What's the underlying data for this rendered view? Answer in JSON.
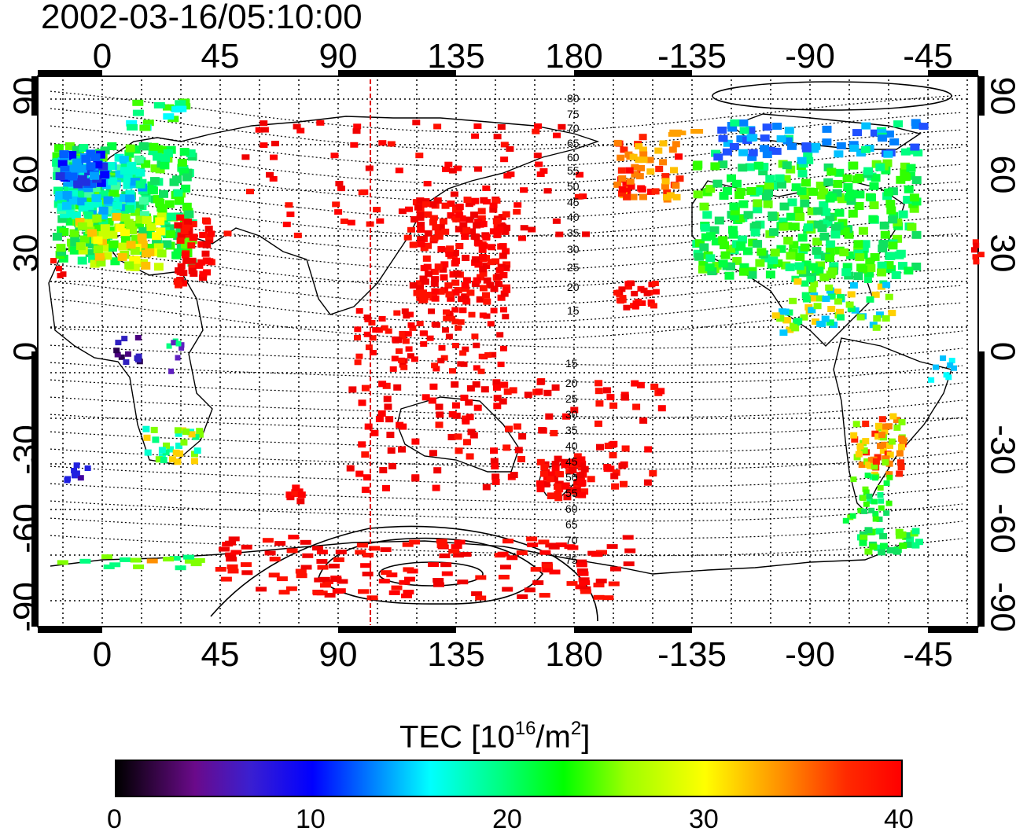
{
  "title": "2002-03-16/05:10:00",
  "map": {
    "lon_ticks": [
      "0",
      "45",
      "90",
      "135",
      "180",
      "-135",
      "-90",
      "-45"
    ],
    "lat_ticks": [
      "90",
      "60",
      "30",
      "0",
      "-30",
      "-60",
      "-90"
    ],
    "marker_longitude": "103",
    "contour_labels_north": [
      "80",
      "75",
      "70",
      "65",
      "60",
      "55",
      "50",
      "45",
      "40",
      "35",
      "30",
      "25",
      "20",
      "15"
    ],
    "contour_labels_south": [
      "15",
      "20",
      "25",
      "30",
      "35",
      "40",
      "45",
      "50",
      "55",
      "60",
      "65",
      "70",
      "75"
    ]
  },
  "colorbar": {
    "title_main": "TEC  [10",
    "title_sup1": "16",
    "title_mid": "/m",
    "title_sup2": "2",
    "title_end": "]",
    "ticks": [
      "0",
      "10",
      "20",
      "30",
      "40"
    ],
    "range": [
      0,
      40
    ],
    "colors": [
      "#000000",
      "#0000ff",
      "#00ffff",
      "#00ff00",
      "#ffff00",
      "#ff0000"
    ]
  }
}
